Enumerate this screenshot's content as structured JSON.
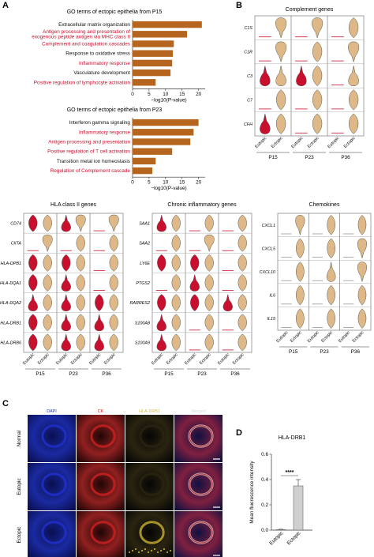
{
  "panels": {
    "A": "A",
    "B": "B",
    "C": "C",
    "D": "D"
  },
  "colors": {
    "bar": "#b5651d",
    "red": "#c8102e",
    "tan": "#deb887",
    "outline": "#555555",
    "dapi": "#2030d0",
    "ck": "#d02020",
    "hla": "#d8c030"
  },
  "go_p15": {
    "title": "GO terms of ectopic epithelia from P15",
    "xlabel": "−log10(P-value)",
    "terms": [
      {
        "label": "Extracellular matrix organization",
        "value": 21,
        "highlight": false
      },
      {
        "label": "Antigen processing and presentation of exogenous peptide antigen via MHC class II",
        "value": 16.5,
        "highlight": true
      },
      {
        "label": "Complement and coagulation cascades",
        "value": 12.5,
        "highlight": true
      },
      {
        "label": "Response to oxidative stress",
        "value": 12.2,
        "highlight": false
      },
      {
        "label": "Inflammatory response",
        "value": 12,
        "highlight": true
      },
      {
        "label": "Vasculature development",
        "value": 11.5,
        "highlight": false
      },
      {
        "label": "Positive regulation of lymphocyte activation",
        "value": 7,
        "highlight": true
      }
    ],
    "ticks": [
      "0",
      "5",
      "10",
      "15",
      "20"
    ],
    "xmax": 22
  },
  "go_p23": {
    "title": "GO terms of ectopic epithelia from P23",
    "xlabel": "−log10(P-value)",
    "terms": [
      {
        "label": "Interferon gamma signaling",
        "value": 20,
        "highlight": false
      },
      {
        "label": "Inflammatory response",
        "value": 18.5,
        "highlight": true
      },
      {
        "label": "Antigen processing and presentation",
        "value": 17.5,
        "highlight": true
      },
      {
        "label": "Positive regulation of T cell activation",
        "value": 12,
        "highlight": true
      },
      {
        "label": "Transition metal ion homeostasis",
        "value": 7,
        "highlight": false
      },
      {
        "label": "Regulation of Complement cascade",
        "value": 6,
        "highlight": true
      }
    ],
    "ticks": [
      "0",
      "5",
      "10",
      "15",
      "20"
    ],
    "xmax": 22
  },
  "complement": {
    "title": "Complement genes",
    "genes": [
      "C1S",
      "C1R",
      "C3",
      "C7",
      "CFH"
    ]
  },
  "hla": {
    "title": "HLA class II genes",
    "genes": [
      "CD74",
      "CIITA",
      "HLA-DPB1",
      "HLA-DQA1",
      "HLA-DQA2",
      "HLA-DRB1",
      "HLA-DRB6"
    ]
  },
  "chronic": {
    "title": "Chronic inflammatory genes",
    "genes": [
      "SAA1",
      "SAA2",
      "LY6E",
      "PTGS2",
      "RARRES2",
      "S100A8",
      "S100A9"
    ]
  },
  "chemokines": {
    "title": "Chemokines",
    "genes": [
      "CXCL1",
      "CXCL5",
      "CXCL10",
      "IL6",
      "IL15"
    ]
  },
  "groups": [
    "Eutopic",
    "Ectopic"
  ],
  "patients": [
    "P15",
    "P23",
    "P36"
  ],
  "micro": {
    "columns": [
      "DAPI",
      "CK",
      "HLA-DRB1",
      "Merged"
    ],
    "rows": [
      "Normal",
      "Eutopic",
      "Ectopic"
    ]
  },
  "chart_data": {
    "type": "bar",
    "title": "HLA-DRB1",
    "ylabel": "Mean fluorescence intensity",
    "categories": [
      "Eutopic",
      "Ectopic"
    ],
    "values": [
      0.005,
      0.35
    ],
    "error": [
      0.002,
      0.05
    ],
    "ylim": [
      0,
      0.6
    ],
    "yticks": [
      "0.0",
      "0.2",
      "0.4",
      "0.6"
    ],
    "significance": "****"
  }
}
